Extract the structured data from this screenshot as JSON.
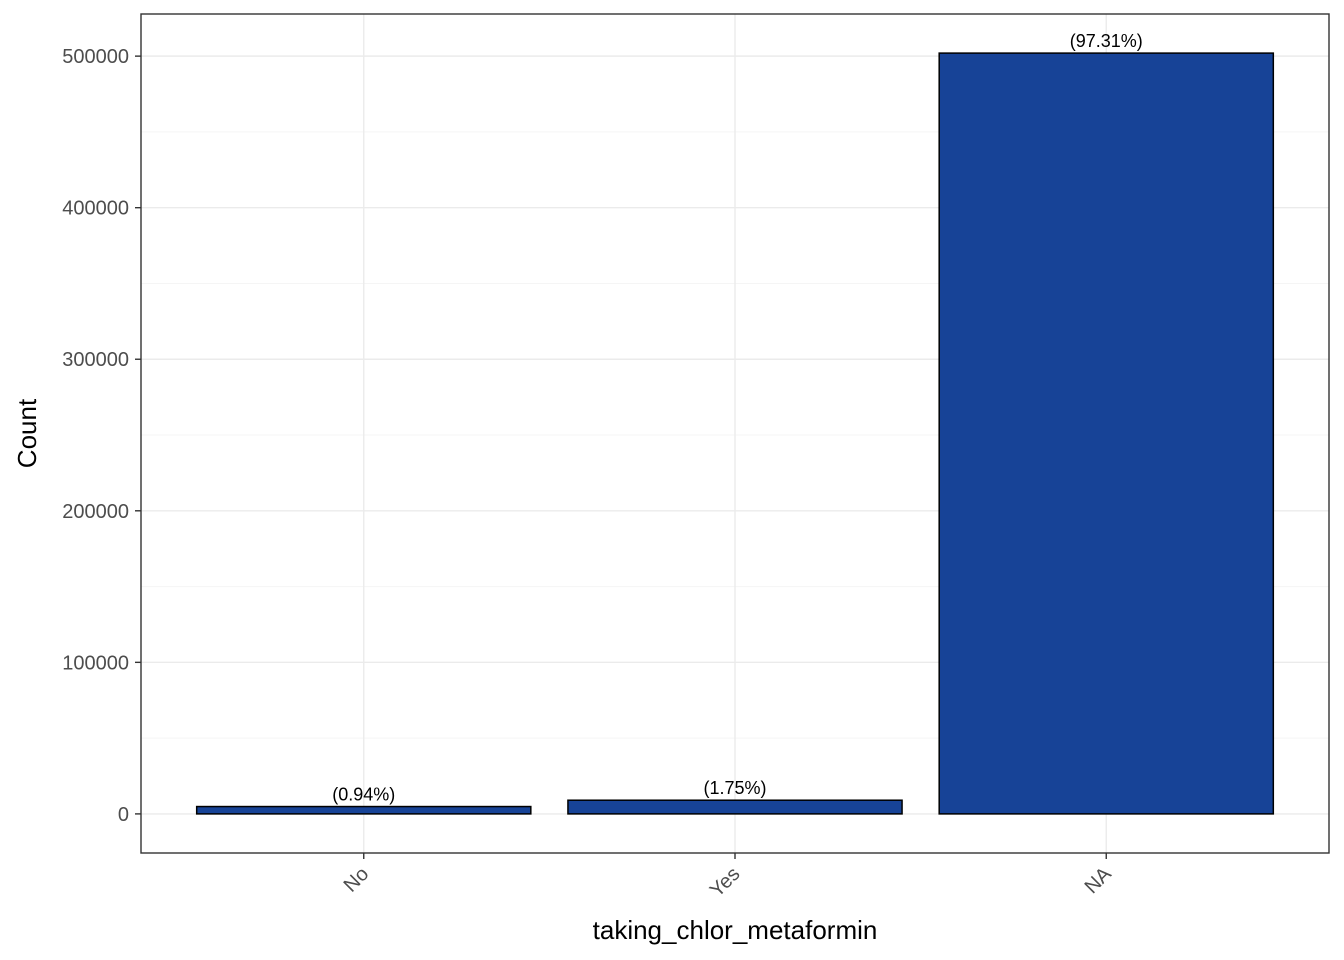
{
  "chart_data": {
    "type": "bar",
    "title": "",
    "xlabel": "taking_chlor_metaformin",
    "ylabel": "Count",
    "categories": [
      "No",
      "Yes",
      "NA"
    ],
    "values": [
      4850,
      9030,
      502000
    ],
    "data_labels": [
      "(0.94%)",
      "(1.75%)",
      "(97.31%)"
    ],
    "ylim": [
      -25800,
      527800
    ],
    "yticks": [
      0,
      100000,
      200000,
      300000,
      400000,
      500000
    ],
    "ytick_labels": [
      "0",
      "100000",
      "200000",
      "300000",
      "400000",
      "500000"
    ],
    "grid": true,
    "legend": "none"
  },
  "colors": {
    "bar_fill": "#174397",
    "bar_outline": "#000000",
    "grid_major": "#ebebeb",
    "grid_minor": "#f5f5f5",
    "panel_border": "#333333"
  }
}
